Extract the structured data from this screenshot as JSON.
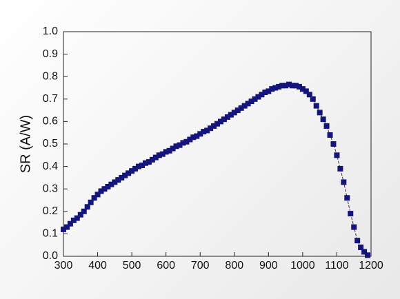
{
  "chart_data": {
    "type": "scatter",
    "ylabel": "SR (A/W)",
    "color": "#14147a",
    "line_color": "#333333",
    "x": [
      300,
      310,
      320,
      330,
      340,
      350,
      360,
      370,
      380,
      390,
      400,
      410,
      420,
      430,
      440,
      450,
      460,
      470,
      480,
      490,
      500,
      510,
      520,
      530,
      540,
      550,
      560,
      570,
      580,
      590,
      600,
      610,
      620,
      630,
      640,
      650,
      660,
      670,
      680,
      690,
      700,
      710,
      720,
      730,
      740,
      750,
      760,
      770,
      780,
      790,
      800,
      810,
      820,
      830,
      840,
      850,
      860,
      870,
      880,
      890,
      900,
      910,
      920,
      930,
      940,
      950,
      960,
      970,
      980,
      990,
      1000,
      1010,
      1020,
      1030,
      1040,
      1050,
      1060,
      1070,
      1080,
      1090,
      1100,
      1110,
      1120,
      1130,
      1140,
      1150,
      1160,
      1170,
      1180,
      1190
    ],
    "values": [
      0.12,
      0.13,
      0.145,
      0.16,
      0.17,
      0.185,
      0.2,
      0.22,
      0.24,
      0.26,
      0.275,
      0.29,
      0.3,
      0.31,
      0.32,
      0.33,
      0.34,
      0.35,
      0.36,
      0.37,
      0.38,
      0.39,
      0.4,
      0.405,
      0.415,
      0.42,
      0.43,
      0.44,
      0.45,
      0.455,
      0.465,
      0.47,
      0.48,
      0.49,
      0.495,
      0.505,
      0.51,
      0.52,
      0.53,
      0.535,
      0.545,
      0.555,
      0.56,
      0.57,
      0.58,
      0.59,
      0.6,
      0.61,
      0.62,
      0.63,
      0.64,
      0.65,
      0.66,
      0.67,
      0.68,
      0.69,
      0.7,
      0.71,
      0.72,
      0.73,
      0.735,
      0.745,
      0.75,
      0.755,
      0.76,
      0.76,
      0.765,
      0.76,
      0.76,
      0.755,
      0.745,
      0.735,
      0.72,
      0.7,
      0.67,
      0.64,
      0.61,
      0.58,
      0.54,
      0.5,
      0.45,
      0.39,
      0.33,
      0.26,
      0.19,
      0.13,
      0.07,
      0.04,
      0.02,
      0.005
    ],
    "xlim": [
      300,
      1200
    ],
    "xticks": [
      300,
      400,
      500,
      600,
      700,
      800,
      900,
      1000,
      1100,
      1200
    ],
    "ylim": [
      0,
      1
    ],
    "yticks": [
      {
        "value": 0,
        "label": "0.0"
      },
      0.1,
      0.2,
      0.3,
      0.4,
      0.5,
      0.6,
      0.7,
      0.8,
      0.9,
      {
        "value": 1,
        "label": "1.0"
      }
    ]
  }
}
